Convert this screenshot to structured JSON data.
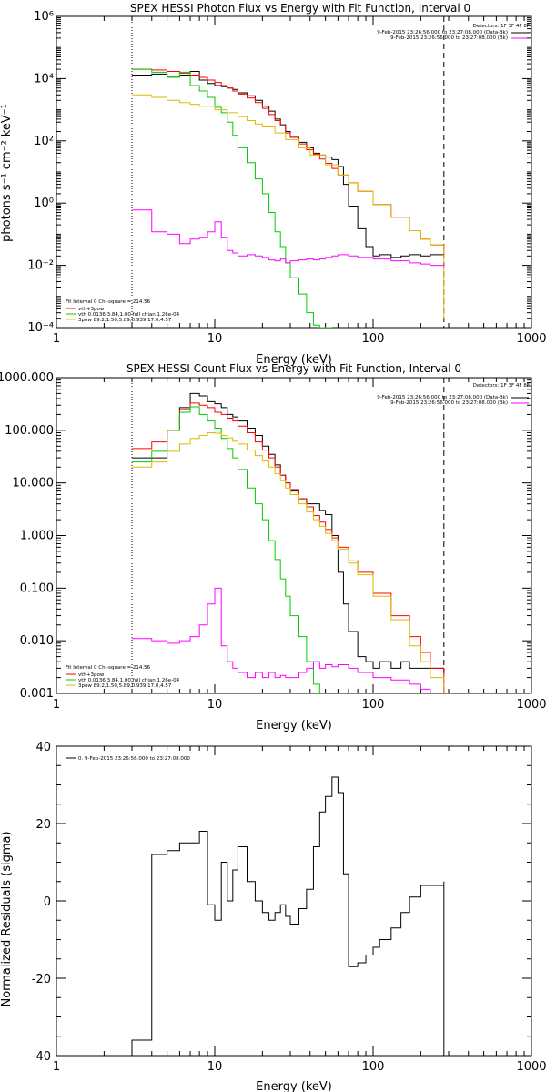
{
  "panels": [
    {
      "id": "photon",
      "title": "SPEX HESSI Photon Flux vs Energy with Fit Function, Interval 0",
      "xlabel": "Energy (keV)",
      "ylabel": "photons s⁻¹ cm⁻² keV⁻¹",
      "x_ticks": [
        "1",
        "10",
        "100",
        "1000"
      ],
      "y_ticks": [
        "10⁻⁴",
        "10⁻²",
        "10⁰",
        "10²",
        "10⁴",
        "10⁶"
      ],
      "detectors": "Detectors: 1F 3F 4F 8F",
      "legend_right": [
        {
          "text": "9-Feb-2015 23:26:56.000 to 23:27:08.000 (Data-Bk)",
          "color": "#000000"
        },
        {
          "text": "9-Feb-2015 23:26:56.000 to 23:27:08.000 (Bk)",
          "color": "#ff00ff"
        }
      ],
      "fit_header": "Fit Interval 0   Chi-square = 214.56",
      "legend_left": [
        {
          "text": "vth+3pow",
          "color": "#ff0000"
        },
        {
          "text": "vth 0.0136,3.84,1.00  full chian 1.26e-04",
          "color": "#00cc00"
        },
        {
          "text": "3pow 89.2,1.50,5.89,0.939,17.0,4.57",
          "color": "#ddbb00"
        }
      ]
    },
    {
      "id": "count",
      "title": "SPEX HESSI Count Flux vs Energy with Fit Function, Interval 0",
      "xlabel": "Energy (keV)",
      "x_ticks": [
        "1",
        "10",
        "100",
        "1000"
      ],
      "y_ticks": [
        "0.001",
        "0.010",
        "0.100",
        "1.000",
        "10.000",
        "100.000",
        "1000.000"
      ],
      "detectors": "Detectors: 1F 3F 4F 8F",
      "legend_right": [
        {
          "text": "9-Feb-2015 23:26:56.000 to 23:27:08.000 (Data-Bk)",
          "color": "#000000"
        },
        {
          "text": "9-Feb-2015 23:26:56.000 to 23:27:08.000 (Bk)",
          "color": "#ff00ff"
        }
      ],
      "fit_header": "Fit Interval 0   Chi-square = 214.56",
      "legend_left": [
        {
          "text": "vth+3pow",
          "color": "#ff0000"
        },
        {
          "text": "vth 0.0136,3.84,1.00  full chian 1.26e-04",
          "color": "#00cc00"
        },
        {
          "text": "3pow 89.2,1.50,5.89,0.939,17.0,4.57",
          "color": "#ddbb00"
        }
      ]
    },
    {
      "id": "residuals",
      "xlabel": "Energy (keV)",
      "ylabel": "Normalized Residuals (sigma)",
      "x_ticks": [
        "1",
        "10",
        "100",
        "1000"
      ],
      "y_ticks": [
        "-40",
        "-20",
        "0",
        "20",
        "40"
      ],
      "legend": "0. 9-Feb-2015 23:26:56.000 to 23:27:08.000"
    }
  ],
  "chart_data": [
    {
      "type": "line",
      "title": "SPEX HESSI Photon Flux vs Energy with Fit Function, Interval 0",
      "xlabel": "Energy (keV)",
      "ylabel": "photons s^-1 cm^-2 keV^-1",
      "xscale": "log",
      "yscale": "log",
      "xlim": [
        1,
        1000
      ],
      "ylim": [
        0.0001,
        1000000
      ],
      "vlines": [
        {
          "x": 3,
          "style": "dotted"
        },
        {
          "x": 280,
          "style": "dashed"
        }
      ],
      "series": [
        {
          "name": "Data-Bk",
          "color": "#000000",
          "x": [
            3,
            4,
            5,
            6,
            7,
            8,
            9,
            10,
            11,
            12,
            13,
            14,
            16,
            18,
            20,
            22,
            24,
            26,
            28,
            30,
            34,
            38,
            42,
            46,
            50,
            55,
            60,
            65,
            70,
            80,
            90,
            100,
            110,
            130,
            150,
            170,
            200,
            230,
            280
          ],
          "y": [
            13000,
            14000,
            12000,
            13000,
            17000,
            9000,
            7000,
            6000,
            5500,
            5000,
            4500,
            3500,
            2800,
            2000,
            1300,
            900,
            500,
            330,
            200,
            130,
            90,
            60,
            40,
            35,
            30,
            25,
            15,
            4,
            0.8,
            0.15,
            0.04,
            0.02,
            0.022,
            0.018,
            0.02,
            0.022,
            0.02,
            0.022,
            0.024
          ]
        },
        {
          "name": "vth+3pow",
          "color": "#ff0000",
          "x": [
            3,
            4,
            5,
            6,
            7,
            8,
            9,
            10,
            11,
            12,
            13,
            14,
            16,
            18,
            20,
            22,
            24,
            26,
            28,
            30,
            34,
            38,
            42,
            46,
            50,
            55,
            60,
            70,
            80,
            100,
            130,
            170,
            200,
            230,
            280
          ],
          "y": [
            20000,
            19000,
            17000,
            15000,
            13000,
            11000,
            9000,
            7500,
            6000,
            5000,
            4000,
            3200,
            2400,
            1700,
            1100,
            700,
            450,
            300,
            180,
            130,
            80,
            52,
            37,
            26,
            19,
            13,
            8,
            4.5,
            2.4,
            0.9,
            0.35,
            0.13,
            0.07,
            0.045,
            0.02
          ]
        },
        {
          "name": "vth 0.0136,3.84,1.00",
          "color": "#00cc00",
          "x": [
            3,
            4,
            5,
            6,
            7,
            8,
            9,
            10,
            11,
            12,
            13,
            14,
            16,
            18,
            20,
            22,
            24,
            26,
            28,
            30,
            34,
            38,
            42,
            46,
            50,
            55
          ],
          "y": [
            20000,
            16000,
            11000,
            16000,
            6000,
            4000,
            2500,
            1200,
            800,
            400,
            150,
            60,
            20,
            6,
            2,
            0.5,
            0.12,
            0.04,
            0.012,
            0.004,
            0.0012,
            0.0003,
            0.00012,
            0.0001,
            0.0001,
            0.0001
          ]
        },
        {
          "name": "3pow 89.2,1.50,5.89,0.939,17.0,4.57",
          "color": "#ddbb00",
          "x": [
            3,
            4,
            5,
            6,
            7,
            8,
            10,
            12,
            14,
            16,
            18,
            20,
            24,
            28,
            34,
            40,
            50,
            60,
            70,
            80,
            100,
            130,
            170,
            200,
            230,
            280
          ],
          "y": [
            3000,
            2500,
            2000,
            1700,
            1500,
            1300,
            1000,
            800,
            600,
            450,
            350,
            280,
            180,
            110,
            60,
            35,
            17,
            8,
            4.5,
            2.4,
            0.9,
            0.35,
            0.13,
            0.07,
            0.045,
            0.0002
          ]
        },
        {
          "name": "Bk",
          "color": "#ff00ff",
          "x": [
            3,
            4,
            5,
            6,
            7,
            8,
            9,
            10,
            11,
            12,
            13,
            14,
            16,
            18,
            20,
            22,
            24,
            26,
            28,
            30,
            34,
            38,
            42,
            46,
            50,
            55,
            60,
            70,
            80,
            100,
            130,
            170,
            200,
            230,
            280
          ],
          "y": [
            0.6,
            0.12,
            0.1,
            0.05,
            0.07,
            0.08,
            0.12,
            0.25,
            0.08,
            0.03,
            0.025,
            0.02,
            0.022,
            0.02,
            0.018,
            0.015,
            0.014,
            0.016,
            0.012,
            0.014,
            0.015,
            0.016,
            0.015,
            0.016,
            0.018,
            0.02,
            0.022,
            0.02,
            0.018,
            0.016,
            0.014,
            0.012,
            0.011,
            0.01,
            0.012
          ]
        }
      ]
    },
    {
      "type": "line",
      "title": "SPEX HESSI Count Flux vs Energy with Fit Function, Interval 0",
      "xlabel": "Energy (keV)",
      "xscale": "log",
      "yscale": "log",
      "xlim": [
        1,
        1000
      ],
      "ylim": [
        0.001,
        1000
      ],
      "vlines": [
        {
          "x": 3,
          "style": "dotted"
        },
        {
          "x": 280,
          "style": "dashed"
        }
      ],
      "series": [
        {
          "name": "Data-Bk",
          "color": "#000000",
          "x": [
            3,
            4,
            5,
            6,
            7,
            8,
            9,
            10,
            11,
            12,
            13,
            14,
            16,
            18,
            20,
            22,
            24,
            26,
            28,
            30,
            34,
            38,
            42,
            46,
            50,
            55,
            60,
            65,
            70,
            80,
            90,
            100,
            110,
            130,
            150,
            170,
            200,
            230,
            280
          ],
          "y": [
            30,
            30,
            100,
            270,
            500,
            450,
            350,
            320,
            270,
            200,
            180,
            150,
            110,
            80,
            50,
            35,
            22,
            14,
            10,
            7,
            5,
            4,
            4,
            3,
            2.5,
            1,
            0.2,
            0.05,
            0.015,
            0.005,
            0.004,
            0.003,
            0.004,
            0.003,
            0.004,
            0.003,
            0.003,
            0.003,
            0.0025
          ]
        },
        {
          "name": "vth+3pow",
          "color": "#ff0000",
          "x": [
            3,
            4,
            5,
            6,
            7,
            8,
            9,
            10,
            11,
            12,
            13,
            14,
            16,
            18,
            20,
            22,
            24,
            26,
            28,
            30,
            34,
            38,
            42,
            46,
            50,
            55,
            60,
            70,
            80,
            100,
            130,
            170,
            200,
            230,
            280
          ],
          "y": [
            45,
            60,
            100,
            250,
            330,
            300,
            270,
            220,
            200,
            170,
            150,
            120,
            90,
            60,
            42,
            30,
            20,
            14,
            10,
            7.5,
            5,
            3.5,
            2.4,
            1.8,
            1.3,
            0.9,
            0.6,
            0.33,
            0.2,
            0.08,
            0.03,
            0.012,
            0.006,
            0.003,
            0.001
          ]
        },
        {
          "name": "vth",
          "color": "#00cc00",
          "x": [
            3,
            4,
            5,
            6,
            7,
            8,
            9,
            10,
            11,
            12,
            13,
            14,
            16,
            18,
            20,
            22,
            24,
            26,
            28,
            30,
            34,
            38,
            42,
            46
          ],
          "y": [
            25,
            40,
            100,
            220,
            280,
            200,
            150,
            110,
            70,
            45,
            30,
            18,
            8,
            4,
            2,
            0.8,
            0.35,
            0.15,
            0.07,
            0.03,
            0.012,
            0.004,
            0.0015,
            0.001
          ]
        },
        {
          "name": "3pow",
          "color": "#ddbb00",
          "x": [
            3,
            4,
            5,
            6,
            7,
            8,
            9,
            10,
            11,
            12,
            13,
            14,
            16,
            18,
            20,
            22,
            24,
            26,
            28,
            30,
            34,
            38,
            42,
            46,
            50,
            55,
            60,
            70,
            80,
            100,
            130,
            170,
            200,
            230,
            280
          ],
          "y": [
            20,
            25,
            40,
            55,
            70,
            80,
            90,
            88,
            80,
            72,
            62,
            55,
            42,
            33,
            26,
            20,
            15,
            11,
            8,
            6,
            4,
            2.8,
            2,
            1.5,
            1.1,
            0.8,
            0.55,
            0.3,
            0.18,
            0.07,
            0.025,
            0.008,
            0.004,
            0.002,
            0.001
          ]
        },
        {
          "name": "Bk",
          "color": "#ff00ff",
          "x": [
            3,
            4,
            5,
            6,
            7,
            8,
            9,
            10,
            11,
            12,
            13,
            14,
            16,
            18,
            20,
            22,
            24,
            26,
            28,
            30,
            34,
            38,
            42,
            46,
            50,
            55,
            60,
            70,
            80,
            100,
            130,
            170,
            200,
            230,
            280
          ],
          "y": [
            0.011,
            0.01,
            0.009,
            0.01,
            0.012,
            0.02,
            0.05,
            0.1,
            0.008,
            0.004,
            0.003,
            0.0025,
            0.002,
            0.0025,
            0.002,
            0.0025,
            0.002,
            0.0022,
            0.002,
            0.002,
            0.0025,
            0.003,
            0.004,
            0.003,
            0.0035,
            0.0032,
            0.0035,
            0.003,
            0.0025,
            0.002,
            0.0018,
            0.0015,
            0.0012,
            0.001,
            0.001
          ]
        }
      ]
    },
    {
      "type": "line",
      "xlabel": "Energy (keV)",
      "ylabel": "Normalized Residuals (sigma)",
      "xscale": "log",
      "yscale": "linear",
      "xlim": [
        1,
        1000
      ],
      "ylim": [
        -40,
        40
      ],
      "series": [
        {
          "name": "0. 9-Feb-2015 23:26:56.000 to 23:27:08.000",
          "color": "#000000",
          "x": [
            3,
            4,
            5,
            6,
            7,
            8,
            9,
            10,
            11,
            12,
            13,
            14,
            16,
            18,
            20,
            22,
            24,
            26,
            28,
            30,
            34,
            38,
            42,
            46,
            50,
            55,
            60,
            65,
            70,
            80,
            90,
            100,
            110,
            130,
            150,
            170,
            200,
            230,
            280
          ],
          "y": [
            -36,
            12,
            13,
            15,
            15,
            18,
            -1,
            -5,
            10,
            0,
            8,
            14,
            5,
            0,
            -3,
            -5,
            -3,
            -1,
            -4,
            -6,
            -2,
            3,
            14,
            23,
            27,
            32,
            28,
            7,
            -17,
            -16,
            -14,
            -12,
            -10,
            -7,
            -3,
            1,
            4,
            4,
            5
          ]
        }
      ]
    }
  ]
}
